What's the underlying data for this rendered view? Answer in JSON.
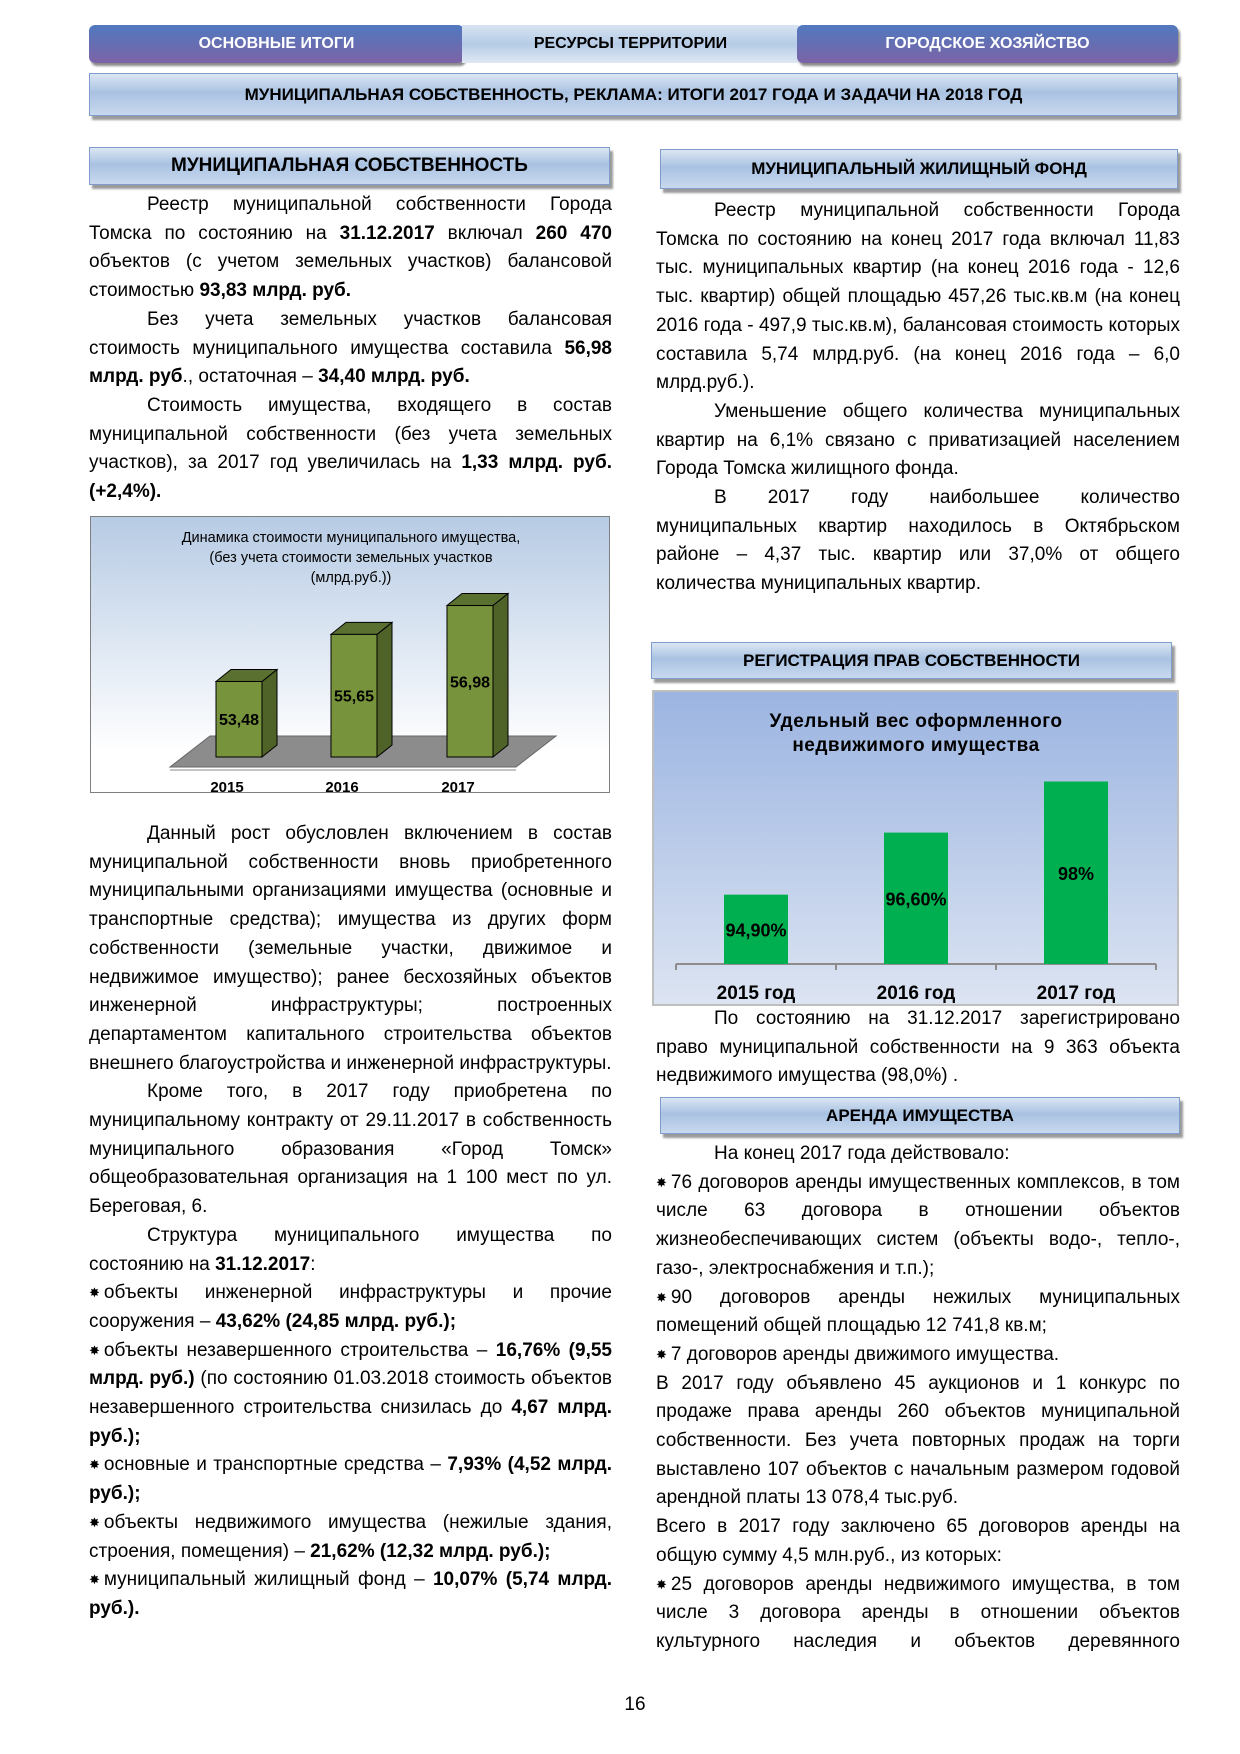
{
  "nav": {
    "tabs": [
      {
        "label": "ОСНОВНЫЕ ИТОГИ"
      },
      {
        "label": "РЕСУРСЫ ТЕРРИТОРИИ"
      },
      {
        "label": "ГОРОДСКОЕ ХОЗЯЙСТВО"
      }
    ],
    "active": 1
  },
  "title": "МУНИЦИПАЛЬНАЯ СОБСТВЕННОСТЬ, РЕКЛАМА: ИТОГИ 2017 ГОДА И ЗАДАЧИ НА 2018 ГОД",
  "headings": {
    "left": "МУНИЦИПАЛЬНАЯ СОБСТВЕННОСТЬ",
    "housing": "МУНИЦИПАЛЬНЫЙ ЖИЛИЩНЫЙ ФОНД",
    "registration": "РЕГИСТРАЦИЯ ПРАВ СОБСТВЕННОСТИ",
    "rent": "АРЕНДА ИМУЩЕСТВА"
  },
  "left_top": [
    {
      "indent": true,
      "parts": [
        {
          "t": "Реестр муниципальной собственности Города Томска по состоянию на "
        },
        {
          "t": "31.12.2017",
          "b": true
        },
        {
          "t": " включал "
        },
        {
          "t": "260 470",
          "b": true
        },
        {
          "t": " объектов (с учетом земельных участков) балансовой стоимостью "
        },
        {
          "t": "93,83 млрд. руб.",
          "b": true
        }
      ]
    },
    {
      "indent": true,
      "parts": [
        {
          "t": "Без учета земельных участков балансовая стоимость муниципального имущества составила "
        },
        {
          "t": "56,98 млрд. руб",
          "b": true
        },
        {
          "t": "., остаточная – "
        },
        {
          "t": "34,40 млрд. руб.",
          "b": true
        }
      ]
    },
    {
      "indent": true,
      "parts": [
        {
          "t": "Стоимость имущества, входящего в состав муниципальной собственности (без учета земельных участков), за 2017 год увеличилась на "
        },
        {
          "t": "1,33 млрд. руб. (+2,4%).",
          "b": true
        }
      ]
    }
  ],
  "left_bottom": [
    {
      "indent": true,
      "parts": [
        {
          "t": "Данный рост обусловлен включением в состав муниципальной собственности вновь приобретенного муниципальными организациями имущества (основные и транспортные средства); имущества из других форм собственности (земельные участки, движимое и недвижимое имущество); ранее бесхозяйных объектов инженерной инфраструктуры; построенных департаментом капитального строительства объектов внешнего благоустройства и инженерной инфраструктуры."
        }
      ]
    },
    {
      "indent": true,
      "parts": [
        {
          "t": "Кроме того, в 2017 году приобретена по муниципальному контракту от 29.11.2017 в собственность муниципального образования «Город Томск» общеобразовательная организация на 1 100 мест по ул. Береговая, 6."
        }
      ]
    },
    {
      "indent": true,
      "parts": [
        {
          "t": "Структура муниципального имущества по состоянию на "
        },
        {
          "t": "31.12.2017",
          "b": true
        },
        {
          "t": ":"
        }
      ]
    },
    {
      "bullet": true,
      "parts": [
        {
          "t": "объекты инженерной инфраструктуры и прочие сооружения – "
        },
        {
          "t": "43,62% (24,85 млрд. руб.);",
          "b": true
        }
      ]
    },
    {
      "bullet": true,
      "parts": [
        {
          "t": "объекты незавершенного строительства – "
        },
        {
          "t": "16,76% (9,55 млрд. руб.)",
          "b": true
        },
        {
          "t": " (по состоянию 01.03.2018 стоимость объектов незавершенного строительства снизилась до "
        },
        {
          "t": "4,67 млрд. руб.);",
          "b": true
        }
      ]
    },
    {
      "bullet": true,
      "parts": [
        {
          "t": "основные и транспортные средства – "
        },
        {
          "t": "7,93% (4,52 млрд. руб.);",
          "b": true
        }
      ]
    },
    {
      "bullet": true,
      "parts": [
        {
          "t": "объекты недвижимого имущества (нежилые здания, строения, помещения) – "
        },
        {
          "t": "21,62% (12,32 млрд. руб.);",
          "b": true
        }
      ]
    },
    {
      "bullet": true,
      "parts": [
        {
          "t": "муниципальный жилищный фонд – "
        },
        {
          "t": "10,07% (5,74 млрд. руб.).",
          "b": true
        }
      ]
    }
  ],
  "right_top": [
    {
      "indent": true,
      "parts": [
        {
          "t": "Реестр муниципальной собственности Города Томска по состоянию на конец 2017 года включал 11,83 тыс. муниципальных квартир (на конец 2016 года - 12,6 тыс. квартир) общей площадью 457,26 тыс.кв.м (на конец 2016 года - 497,9 тыс.кв.м), балансовая стоимость которых составила 5,74 млрд.руб. (на конец 2016 года – 6,0 млрд.руб.)."
        }
      ]
    },
    {
      "indent": true,
      "parts": [
        {
          "t": "Уменьшение общего количества муниципальных квартир на 6,1% связано с приватизацией населением Города Томска жилищного фонда."
        }
      ]
    },
    {
      "indent": true,
      "parts": [
        {
          "t": "В 2017 году наибольшее количество муниципальных квартир находилось в Октябрьском районе – 4,37 тыс. квартир или 37,0% от общего количества муниципальных квартир."
        }
      ]
    }
  ],
  "right_mid": [
    {
      "indent": true,
      "parts": [
        {
          "t": "По состоянию на 31.12.2017 зарегистрировано право муниципальной собственности на 9 363 объекта недвижимого имущества (98,0%) ."
        }
      ]
    }
  ],
  "right_bottom": [
    {
      "indent": true,
      "parts": [
        {
          "t": "На конец 2017 года действовало:"
        }
      ]
    },
    {
      "bullet": true,
      "parts": [
        {
          "t": "76 договоров аренды имущественных комплексов, в том числе 63 договора в отношении объектов жизнеобеспечивающих систем (объекты водо-, тепло-, газо-, электроснабжения и т.п.);"
        }
      ]
    },
    {
      "bullet": true,
      "parts": [
        {
          "t": "90 договоров аренды нежилых муниципальных помещений общей площадью 12 741,8 кв.м;"
        }
      ]
    },
    {
      "bullet": true,
      "parts": [
        {
          "t": "7 договоров аренды движимого имущества."
        }
      ]
    },
    {
      "parts": [
        {
          "t": "В 2017 году объявлено 45 аукционов и 1 конкурс по продаже права аренды 260 объектов муниципальной собственности. Без учета повторных продаж на торги выставлено 107 объектов с начальным размером годовой арендной платы 13 078,4 тыс.руб."
        }
      ]
    },
    {
      "parts": [
        {
          "t": "Всего в 2017 году заключено 65 договоров аренды на общую сумму 4,5 млн.руб., из которых:"
        }
      ]
    },
    {
      "bullet": true,
      "last": true,
      "parts": [
        {
          "t": "25 договоров аренды недвижимого имущества, в том числе 3 договора аренды в отношении объектов культурного наследия и объектов деревянного"
        }
      ]
    }
  ],
  "page_number": "16",
  "chart_data": [
    {
      "type": "bar",
      "style": "3d",
      "title": [
        "Динамика стоимости муниципального имущества,",
        "(без учета стоимости земельных участков",
        "(млрд.руб.))"
      ],
      "categories": [
        "2015",
        "2016",
        "2017"
      ],
      "values": [
        53.48,
        55.65,
        56.98
      ],
      "labels": [
        "53,48",
        "55,65",
        "56,98"
      ],
      "ylim": [
        50,
        58
      ],
      "bar_color": "#77933c",
      "grid": false
    },
    {
      "type": "bar",
      "title": [
        "Удельный вес оформленного",
        "недвижимого имущества"
      ],
      "categories": [
        "2015 год",
        "2016 год",
        "2017 год"
      ],
      "values": [
        94.9,
        96.6,
        98
      ],
      "labels": [
        "94,90%",
        "96,60%",
        "98%"
      ],
      "ylim": [
        93,
        99
      ],
      "bar_color": "#00b050",
      "grid": false
    }
  ]
}
